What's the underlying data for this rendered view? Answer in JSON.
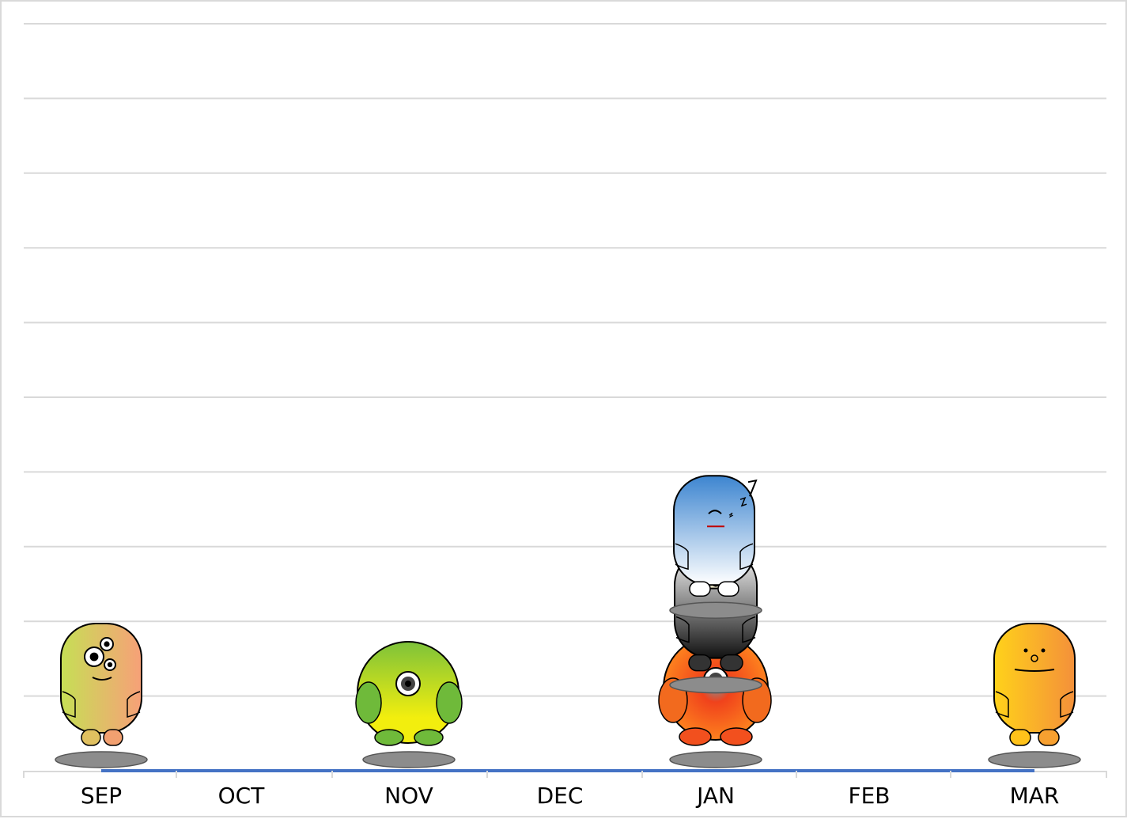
{
  "chart_data": {
    "type": "scatter",
    "title": "",
    "xlabel": "",
    "ylabel": "",
    "categories": [
      "SEP",
      "OCT",
      "NOV",
      "DEC",
      "JAN",
      "FEB",
      "MAR"
    ],
    "ylim": [
      0,
      10
    ],
    "grid": true,
    "legend": "none",
    "points": [
      {
        "category": "SEP",
        "value": 1,
        "icon": "three-eyed-green-peach-monster-icon"
      },
      {
        "category": "NOV",
        "value": 1,
        "icon": "green-yellow-cyclops-blob-icon"
      },
      {
        "category": "JAN",
        "value": 1,
        "icon": "orange-cyclops-blob-icon"
      },
      {
        "category": "JAN",
        "value": 2,
        "icon": "grey-cyclops-monster-icon"
      },
      {
        "category": "JAN",
        "value": 3,
        "icon": "sleeping-blue-monster-icon"
      },
      {
        "category": "MAR",
        "value": 1,
        "icon": "yellow-orange-smiling-monster-icon"
      }
    ],
    "colors": {
      "axis_line": "#4472c4",
      "grid_line": "#d9d9d9",
      "shadow": "#8c8c8c"
    }
  }
}
